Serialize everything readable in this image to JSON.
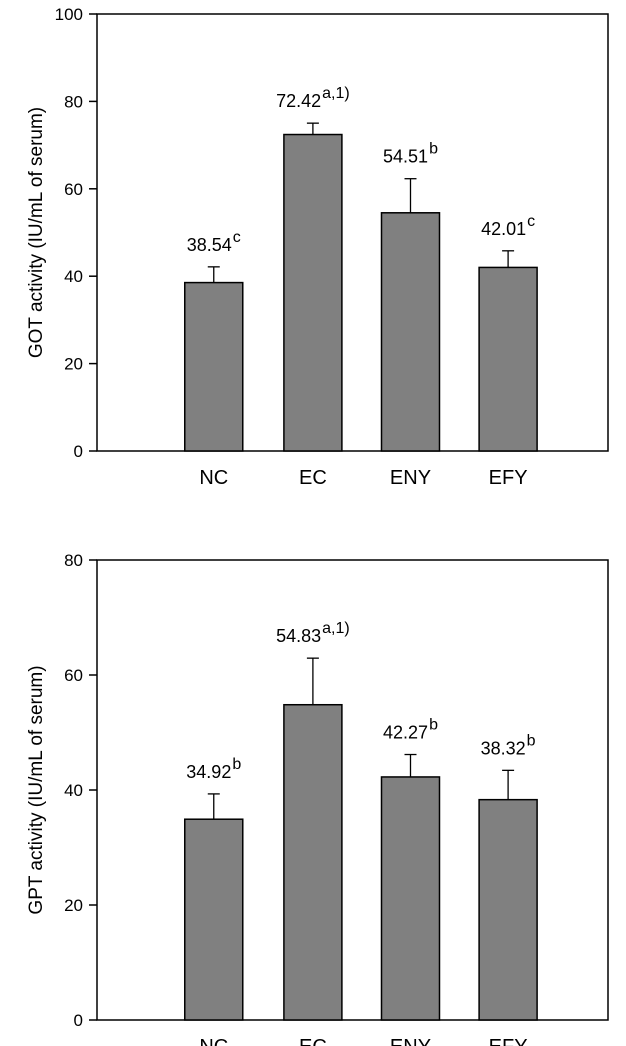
{
  "chart_data": [
    {
      "type": "bar",
      "ylabel": "GOT activity (IU/mL of serum)",
      "xlabel": "",
      "ylim": [
        0,
        100
      ],
      "yticks": [
        0,
        20,
        40,
        60,
        80,
        100
      ],
      "categories": [
        "NC",
        "EC",
        "ENY",
        "EFY"
      ],
      "values": [
        38.54,
        72.42,
        54.51,
        42.01
      ],
      "errors": [
        3.6,
        2.6,
        7.8,
        3.8
      ],
      "value_labels": [
        "38.54",
        "72.42",
        "54.51",
        "42.01"
      ],
      "significance": [
        "c",
        "a,1)",
        "b",
        "c"
      ],
      "bar_color": "#808080",
      "grid": false
    },
    {
      "type": "bar",
      "ylabel": "GPT activity (IU/mL of serum)",
      "xlabel": "",
      "ylim": [
        0,
        80
      ],
      "yticks": [
        0,
        20,
        40,
        60,
        80
      ],
      "categories": [
        "NC",
        "EC",
        "ENY",
        "EFY"
      ],
      "values": [
        34.92,
        54.83,
        42.27,
        38.32
      ],
      "errors": [
        4.4,
        8.1,
        3.9,
        5.1
      ],
      "value_labels": [
        "34.92",
        "54.83",
        "42.27",
        "38.32"
      ],
      "significance": [
        "b",
        "a,1)",
        "b",
        "b"
      ],
      "bar_color": "#808080",
      "grid": false
    }
  ]
}
